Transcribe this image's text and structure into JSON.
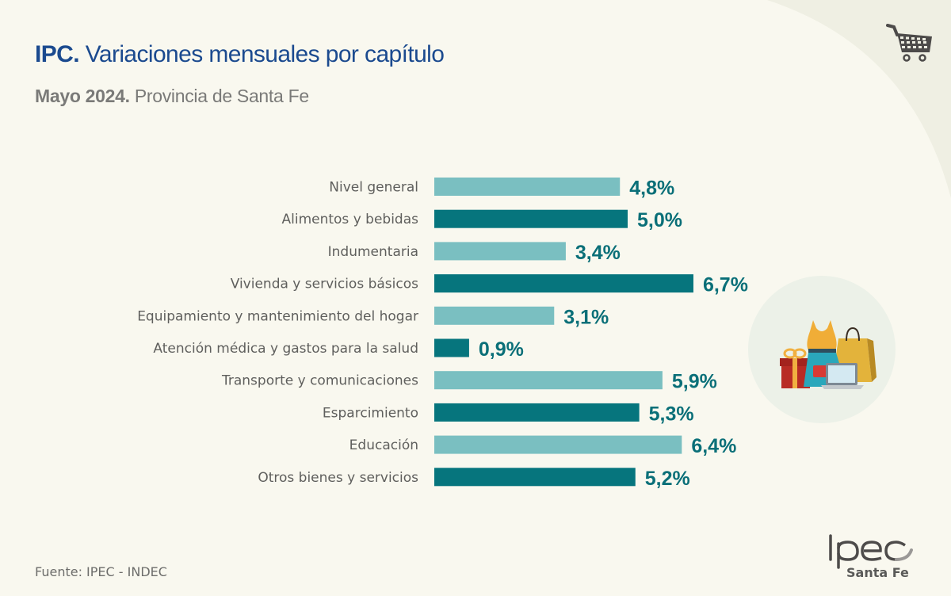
{
  "header": {
    "title_bold": "IPC.",
    "title_rest": " Variaciones mensuales por capítulo",
    "subtitle_bold": "Mayo 2024.",
    "subtitle_rest": " Provincia de Santa Fe"
  },
  "colors": {
    "title": "#1b4a8f",
    "bar_light": "#7abfc1",
    "bar_dark": "#06757d",
    "value_label": "#0a6f78",
    "category_label": "#5f5f5d",
    "background": "#f9f8ef",
    "corner_background": "#efefe3"
  },
  "icons": {
    "top_right": "shopping-cart-icon",
    "illustration": "shopping-items-illustration"
  },
  "chart_data": {
    "type": "bar",
    "orientation": "horizontal",
    "title": "IPC. Variaciones mensuales por capítulo",
    "subtitle": "Mayo 2024. Provincia de Santa Fe",
    "xlabel": "",
    "ylabel": "",
    "unit": "%",
    "grid": false,
    "xlim": [
      0,
      7
    ],
    "categories": [
      "Nivel general",
      "Alimentos y bebidas",
      "Indumentaria",
      "Vivienda y servicios básicos",
      "Equipamiento y mantenimiento del hogar",
      "Atención médica y gastos para la salud",
      "Transporte y comunicaciones",
      "Esparcimiento",
      "Educación",
      "Otros bienes y servicios"
    ],
    "values": [
      4.8,
      5.0,
      3.4,
      6.7,
      3.1,
      0.9,
      5.9,
      5.3,
      6.4,
      5.2
    ],
    "value_labels": [
      "4,8%",
      "5,0%",
      "3,4%",
      "6,7%",
      "3,1%",
      "0,9%",
      "5,9%",
      "5,3%",
      "6,4%",
      "5,2%"
    ],
    "bar_shades": [
      "light",
      "dark",
      "light",
      "dark",
      "light",
      "dark",
      "light",
      "dark",
      "light",
      "dark"
    ]
  },
  "footer": {
    "source": "Fuente: IPEC - INDEC",
    "logo_text": "Ipec",
    "logo_subtext": "Santa Fe"
  }
}
